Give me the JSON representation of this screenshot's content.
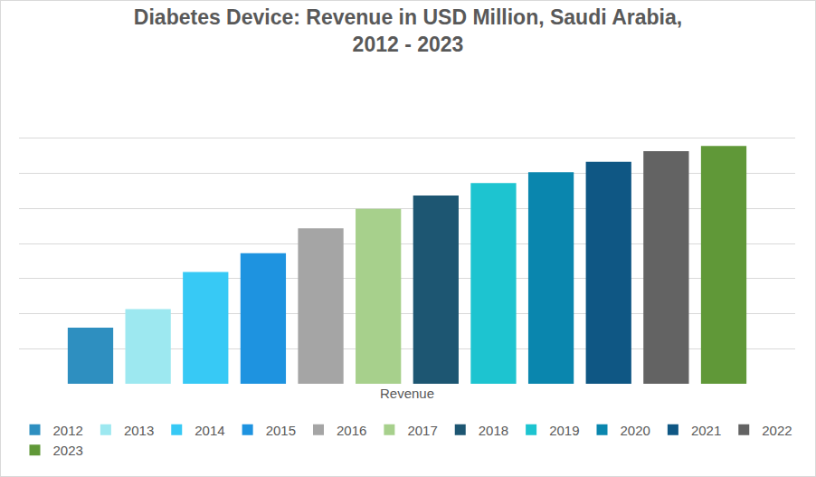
{
  "chart_data": {
    "type": "bar",
    "title": "Diabetes Device: Revenue in USD Million, Saudi Arabia, 2012 - 2023",
    "categories": [
      "Revenue"
    ],
    "series": [
      {
        "name": "2012",
        "color": "#2E8FC0",
        "values": [
          1.6
        ]
      },
      {
        "name": "2013",
        "color": "#9DE8F0",
        "values": [
          2.13
        ]
      },
      {
        "name": "2014",
        "color": "#37C9F5",
        "values": [
          3.19
        ]
      },
      {
        "name": "2015",
        "color": "#1E93E0",
        "values": [
          3.72
        ]
      },
      {
        "name": "2016",
        "color": "#A5A5A5",
        "values": [
          4.43
        ]
      },
      {
        "name": "2017",
        "color": "#A7D08C",
        "values": [
          4.99
        ]
      },
      {
        "name": "2018",
        "color": "#1D5672",
        "values": [
          5.37
        ]
      },
      {
        "name": "2019",
        "color": "#1DC4D0",
        "values": [
          5.72
        ]
      },
      {
        "name": "2020",
        "color": "#0A86AE",
        "values": [
          6.03
        ]
      },
      {
        "name": "2021",
        "color": "#0F5784",
        "values": [
          6.33
        ]
      },
      {
        "name": "2022",
        "color": "#636363",
        "values": [
          6.63
        ]
      },
      {
        "name": "2023",
        "color": "#609838",
        "values": [
          6.78
        ]
      }
    ],
    "ylim": [
      0,
      8
    ],
    "yticks": [
      0,
      1,
      2,
      3,
      4,
      5,
      6,
      7,
      8
    ],
    "grid": true,
    "legend": "bottom",
    "tick_labels": "x"
  }
}
